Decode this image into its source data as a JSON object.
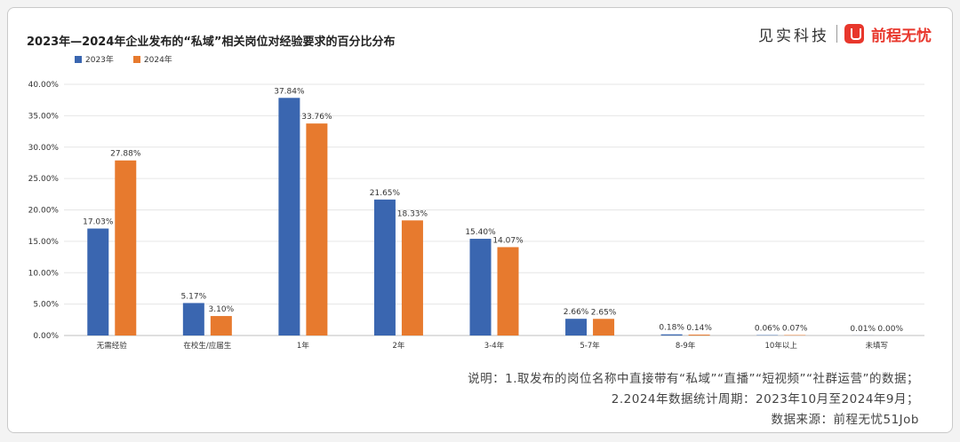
{
  "title": "2023年—2024年企业发布的“私域”相关岗位对经验要求的百分比分布",
  "brand": {
    "left": "见实科技",
    "right": "前程无忧",
    "logo_icon": "qiancheng-logo-icon"
  },
  "colors": {
    "s2023": "#3a66b0",
    "s2024": "#e77a2e",
    "grid": "#e6e6e6"
  },
  "chart_data": {
    "type": "bar",
    "categories": [
      "无需经验",
      "在校生/应届生",
      "1年",
      "2年",
      "3-4年",
      "5-7年",
      "8-9年",
      "10年以上",
      "未填写"
    ],
    "series": [
      {
        "name": "2023年",
        "values": [
          17.03,
          5.17,
          37.84,
          21.65,
          15.4,
          2.66,
          0.18,
          0.06,
          0.01
        ],
        "labels": [
          "17.03%",
          "5.17%",
          "37.84%",
          "21.65%",
          "15.40%",
          "2.66%",
          "0.18%",
          "0.06%",
          "0.01%"
        ]
      },
      {
        "name": "2024年",
        "values": [
          27.88,
          3.1,
          33.76,
          18.33,
          14.07,
          2.65,
          0.14,
          0.07,
          0.0
        ],
        "labels": [
          "27.88%",
          "3.10%",
          "33.76%",
          "18.33%",
          "14.07%",
          "2.65%",
          "0.14%",
          "0.07%",
          "0.00%"
        ]
      }
    ],
    "ylim": [
      0,
      40
    ],
    "yticks": [
      "0.00%",
      "5.00%",
      "10.00%",
      "15.00%",
      "20.00%",
      "25.00%",
      "30.00%",
      "35.00%",
      "40.00%"
    ],
    "grid": true,
    "legend": "top-left"
  },
  "notes": [
    "说明：1.取发布的岗位名称中直接带有“私域”“直播”“短视频”“社群运营”的数据；",
    "2.2024年数据统计周期：2023年10月至2024年9月；",
    "数据来源：前程无忧51Job"
  ]
}
